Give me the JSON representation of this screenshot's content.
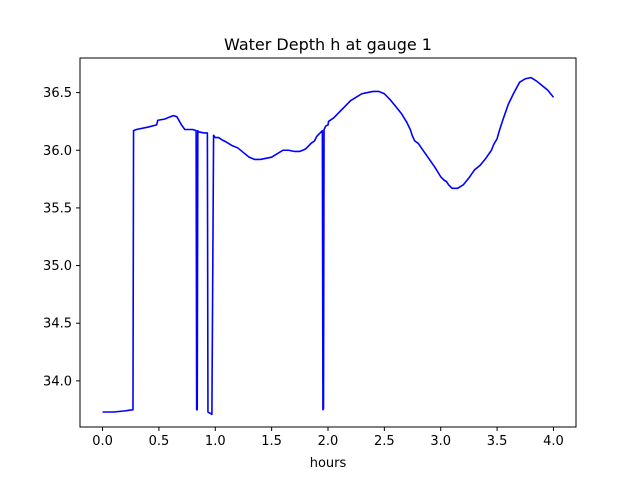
{
  "chart_data": {
    "type": "line",
    "title": "Water Depth h at gauge 1",
    "xlabel": "hours",
    "ylabel": "",
    "xlim": [
      -0.2,
      4.2
    ],
    "ylim": [
      33.6,
      36.8
    ],
    "grid": false,
    "legend": "none",
    "x_ticks": [
      0.0,
      0.5,
      1.0,
      1.5,
      2.0,
      2.5,
      3.0,
      3.5,
      4.0
    ],
    "x_tick_labels": [
      "0.0",
      "0.5",
      "1.0",
      "1.5",
      "2.0",
      "2.5",
      "3.0",
      "3.5",
      "4.0"
    ],
    "y_ticks": [
      34.0,
      34.5,
      35.0,
      35.5,
      36.0,
      36.5
    ],
    "y_tick_labels": [
      "34.0",
      "34.5",
      "35.0",
      "35.5",
      "36.0",
      "36.5"
    ],
    "series": [
      {
        "color": "#0000ff",
        "x": [
          0.0,
          0.1,
          0.2,
          0.27,
          0.275,
          0.3,
          0.4,
          0.48,
          0.49,
          0.55,
          0.6,
          0.63,
          0.66,
          0.7,
          0.73,
          0.8,
          0.83,
          0.835,
          0.84,
          0.845,
          0.85,
          0.9,
          0.93,
          0.935,
          0.97,
          0.985,
          1.0,
          1.03,
          1.06,
          1.08,
          1.1,
          1.15,
          1.2,
          1.25,
          1.3,
          1.35,
          1.4,
          1.45,
          1.5,
          1.55,
          1.6,
          1.65,
          1.7,
          1.75,
          1.8,
          1.83,
          1.85,
          1.88,
          1.9,
          1.93,
          1.95,
          1.955,
          1.96,
          1.965,
          1.97,
          1.975,
          1.98,
          2.0,
          2.005,
          2.05,
          2.1,
          2.15,
          2.2,
          2.25,
          2.3,
          2.35,
          2.4,
          2.45,
          2.5,
          2.55,
          2.6,
          2.65,
          2.7,
          2.73,
          2.75,
          2.77,
          2.8,
          2.85,
          2.9,
          2.95,
          3.0,
          3.03,
          3.05,
          3.07,
          3.1,
          3.15,
          3.2,
          3.25,
          3.3,
          3.35,
          3.4,
          3.45,
          3.47,
          3.5,
          3.52,
          3.55,
          3.6,
          3.65,
          3.7,
          3.75,
          3.8,
          3.85,
          3.9,
          3.95,
          4.0
        ],
        "y": [
          33.73,
          33.73,
          33.74,
          33.75,
          36.17,
          36.18,
          36.2,
          36.22,
          36.26,
          36.27,
          36.29,
          36.3,
          36.29,
          36.22,
          36.18,
          36.18,
          36.17,
          33.75,
          33.75,
          36.17,
          36.16,
          36.15,
          36.15,
          33.73,
          33.71,
          36.13,
          36.11,
          36.11,
          36.09,
          36.08,
          36.07,
          36.04,
          36.02,
          35.98,
          35.94,
          35.92,
          35.92,
          35.93,
          35.94,
          35.97,
          36.0,
          36.0,
          35.99,
          35.99,
          36.01,
          36.04,
          36.06,
          36.08,
          36.12,
          36.15,
          36.17,
          33.75,
          33.76,
          36.18,
          36.19,
          36.2,
          36.21,
          36.22,
          36.25,
          36.28,
          36.33,
          36.38,
          36.43,
          36.46,
          36.49,
          36.5,
          36.51,
          36.51,
          36.49,
          36.44,
          36.38,
          36.32,
          36.24,
          36.18,
          36.12,
          36.08,
          36.06,
          35.99,
          35.92,
          35.85,
          35.77,
          35.74,
          35.73,
          35.7,
          35.67,
          35.67,
          35.7,
          35.76,
          35.83,
          35.87,
          35.93,
          36.0,
          36.05,
          36.1,
          36.17,
          36.26,
          36.4,
          36.5,
          36.59,
          36.62,
          36.63,
          36.6,
          36.56,
          36.52,
          36.46
        ]
      }
    ]
  }
}
